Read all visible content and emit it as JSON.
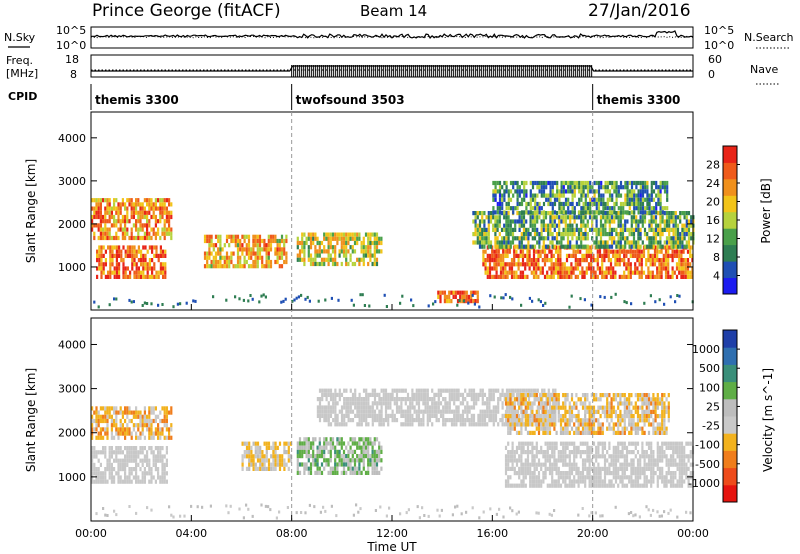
{
  "header": {
    "title": "Prince George (fitACF)",
    "beam": "Beam 14",
    "date": "27/Jan/2016"
  },
  "noise_panel": {
    "left_label": "N.Sky",
    "left_ticks": [
      "10^5",
      "10^0"
    ],
    "right_label": "N.Search",
    "right_ticks": [
      "10^5",
      "10^0"
    ]
  },
  "freq_panel": {
    "left_label_line1": "Freq.",
    "left_label_line2": "[MHz]",
    "left_ticks": [
      "18",
      "8"
    ],
    "right_label": "Nave",
    "right_ticks": [
      "60",
      "0"
    ]
  },
  "cpid": {
    "label": "CPID",
    "segments": [
      {
        "name": "themis 3300",
        "start_h": 0,
        "end_h": 8
      },
      {
        "name": "twofsound 3503",
        "start_h": 8,
        "end_h": 20
      },
      {
        "name": "themis 3300",
        "start_h": 20,
        "end_h": 24
      }
    ]
  },
  "colors": {
    "power": [
      "#1c1cf0",
      "#1f4fb4",
      "#2e7d52",
      "#4aa04a",
      "#b6d23c",
      "#f2c419",
      "#f0901c",
      "#ef5a1a",
      "#e82418"
    ],
    "velocity": [
      "#1f3fa8",
      "#2f6fb0",
      "#3a8f7a",
      "#5fae46",
      "#bdbdbd",
      "#c9c9c9",
      "#f2b21e",
      "#f07d1b",
      "#ee4b1b",
      "#e6140f"
    ],
    "ground_scatter": "#c8c8c8"
  },
  "chart_data": [
    {
      "type": "heatmap",
      "name": "power",
      "ylabel": "Slant Range [km]",
      "xlabel": "Time UT",
      "xlim": [
        0,
        24
      ],
      "ylim": [
        0,
        4600
      ],
      "x_ticks": [
        "00:00",
        "04:00",
        "08:00",
        "12:00",
        "16:00",
        "20:00",
        "00:00"
      ],
      "y_ticks": [
        1000,
        2000,
        3000,
        4000
      ],
      "colorbar": {
        "label": "Power [dB]",
        "ticks": [
          "4",
          "8",
          "12",
          "16",
          "20",
          "24",
          "28"
        ],
        "range": [
          0,
          30
        ]
      },
      "regions": [
        {
          "t": [
            0.0,
            3.2
          ],
          "r": [
            1700,
            2600
          ],
          "value": 22
        },
        {
          "t": [
            0.2,
            3.0
          ],
          "r": [
            800,
            1500
          ],
          "value": 24
        },
        {
          "t": [
            4.5,
            7.8
          ],
          "r": [
            1050,
            1750
          ],
          "value": 20
        },
        {
          "t": [
            8.2,
            11.6
          ],
          "r": [
            1100,
            1800
          ],
          "value": 16
        },
        {
          "t": [
            15.6,
            24.0
          ],
          "r": [
            800,
            1500
          ],
          "value": 24
        },
        {
          "t": [
            15.2,
            24.0
          ],
          "r": [
            1500,
            2300
          ],
          "value": 12
        },
        {
          "t": [
            16.0,
            23.0
          ],
          "r": [
            2300,
            3000
          ],
          "value": 10
        },
        {
          "t": [
            13.8,
            15.4
          ],
          "r": [
            250,
            450
          ],
          "value": 26
        }
      ]
    },
    {
      "type": "heatmap",
      "name": "velocity",
      "ylabel": "Slant Range [km]",
      "xlabel": "Time UT",
      "xlim": [
        0,
        24
      ],
      "ylim": [
        0,
        4600
      ],
      "x_ticks": [
        "00:00",
        "04:00",
        "08:00",
        "12:00",
        "16:00",
        "20:00",
        "00:00"
      ],
      "y_ticks": [
        1000,
        2000,
        3000,
        4000
      ],
      "colorbar": {
        "label": "Velocity [m s^-1]",
        "ticks": [
          "1000",
          "500",
          "100",
          "25",
          "-25",
          "-100",
          "-500",
          "-1000"
        ]
      },
      "regions": [
        {
          "t": [
            0.0,
            3.2
          ],
          "r": [
            1900,
            2600
          ],
          "value": -300
        },
        {
          "t": [
            0.0,
            3.0
          ],
          "r": [
            900,
            1700
          ],
          "value": 0
        },
        {
          "t": [
            6.0,
            8.0
          ],
          "r": [
            1200,
            1800
          ],
          "value": -150
        },
        {
          "t": [
            8.2,
            11.6
          ],
          "r": [
            1100,
            1900
          ],
          "value": 200
        },
        {
          "t": [
            9.0,
            18.5
          ],
          "r": [
            2200,
            3000
          ],
          "value": 0
        },
        {
          "t": [
            16.5,
            24.0
          ],
          "r": [
            800,
            1800
          ],
          "value": 0
        },
        {
          "t": [
            16.5,
            23.0
          ],
          "r": [
            2000,
            2900
          ],
          "value": -200
        }
      ]
    }
  ]
}
